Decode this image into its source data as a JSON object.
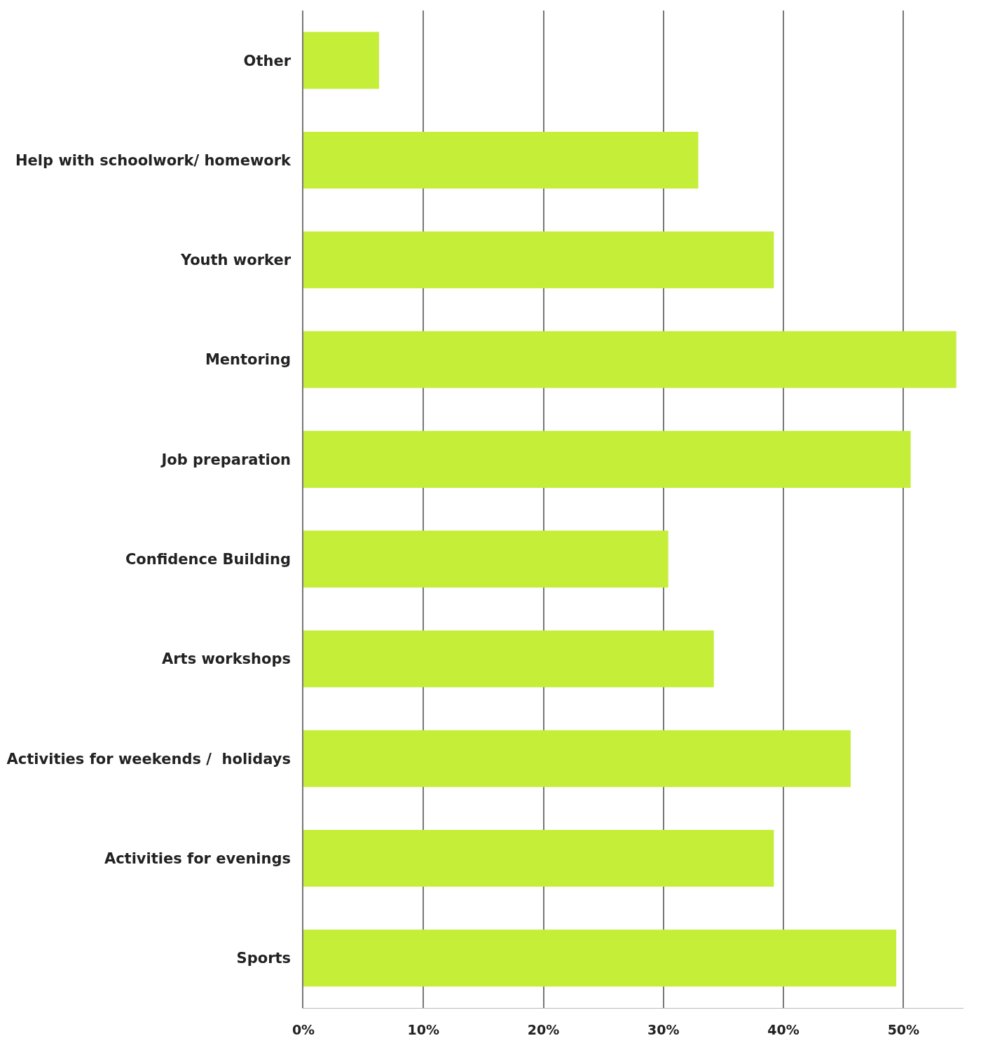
{
  "chart_data": {
    "type": "bar",
    "orientation": "horizontal",
    "categories": [
      "Other",
      "Help with schoolwork/ homework",
      "Youth worker",
      "Mentoring",
      "Job preparation",
      "Confidence Building",
      "Arts workshops",
      "Activities for weekends /  holidays",
      "Activities for evenings",
      "Sports"
    ],
    "values": [
      6.3,
      32.9,
      39.2,
      54.4,
      50.6,
      30.4,
      34.2,
      45.6,
      39.2,
      49.4
    ],
    "color": "#c4ee38",
    "xlim": [
      0,
      55
    ],
    "xticks": [
      {
        "value": 0,
        "label": "0%"
      },
      {
        "value": 10,
        "label": "10%"
      },
      {
        "value": 20,
        "label": "20%"
      },
      {
        "value": 30,
        "label": "30%"
      },
      {
        "value": 40,
        "label": "40%"
      },
      {
        "value": 50,
        "label": "50%"
      }
    ],
    "grid": "x"
  }
}
